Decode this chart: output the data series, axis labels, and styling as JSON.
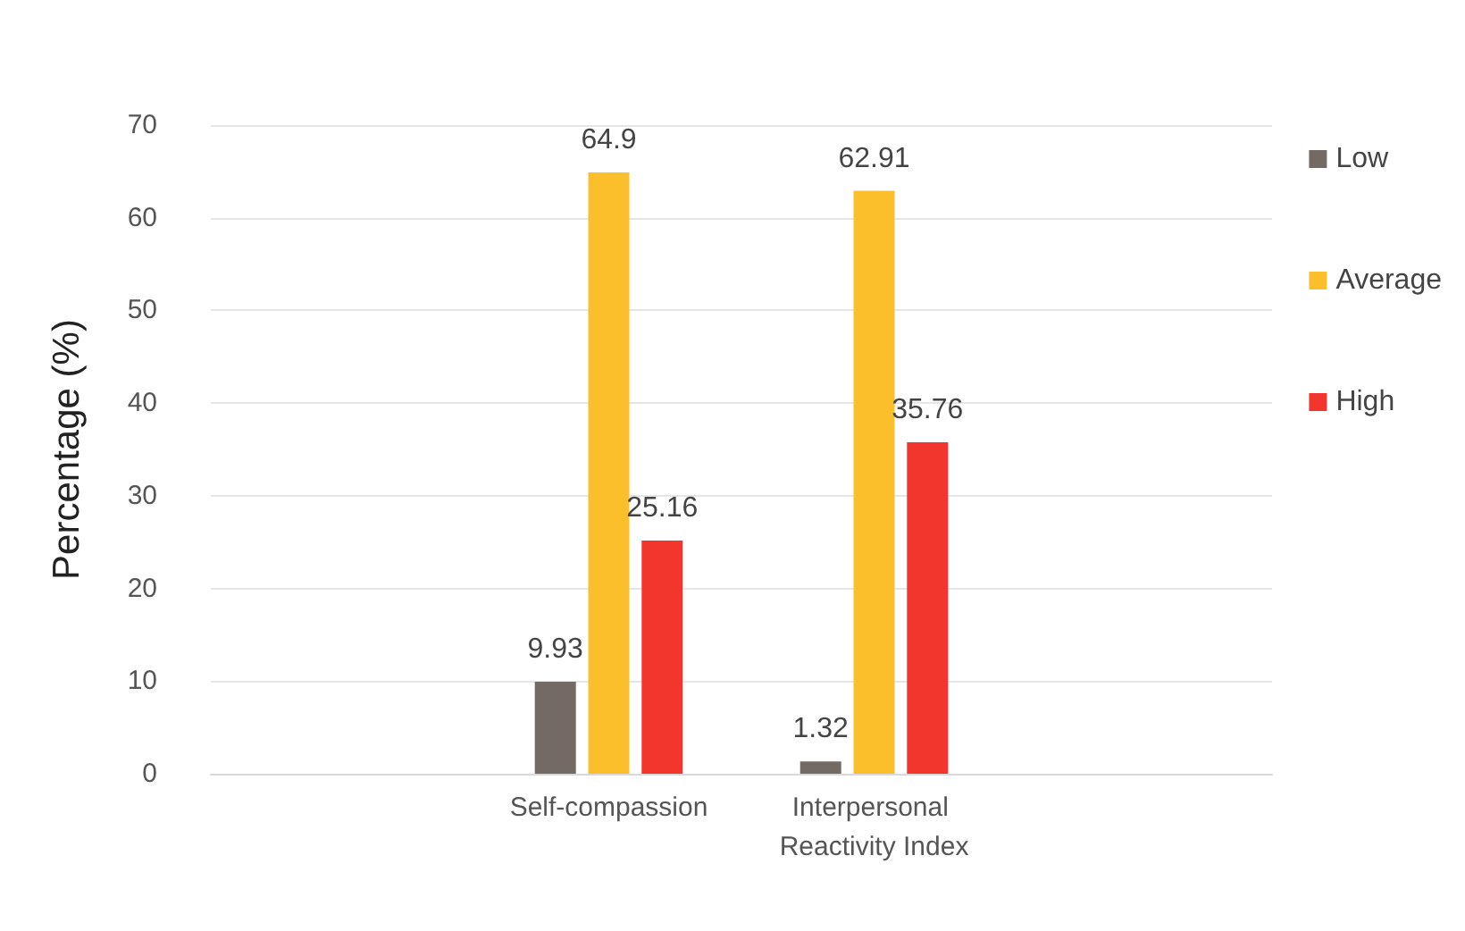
{
  "chart_data": {
    "type": "bar",
    "ylabel": "Percentage (%)",
    "categories": [
      null,
      "Self-compassion",
      "Interpersonal Reactivity Index",
      null
    ],
    "series": [
      {
        "name": "Low",
        "color": "#736a66",
        "values": [
          null,
          9.93,
          1.32,
          null
        ]
      },
      {
        "name": "Average",
        "color": "#fcbf2c",
        "values": [
          null,
          64.9,
          62.91,
          null
        ]
      },
      {
        "name": "High",
        "color": "#f2362e",
        "values": [
          null,
          25.16,
          35.76,
          null
        ]
      }
    ],
    "ylim": [
      0,
      70
    ],
    "yticks": [
      0,
      10,
      20,
      30,
      40,
      50,
      60,
      70
    ],
    "grid": "y",
    "legend": "right",
    "data_labels": true
  }
}
